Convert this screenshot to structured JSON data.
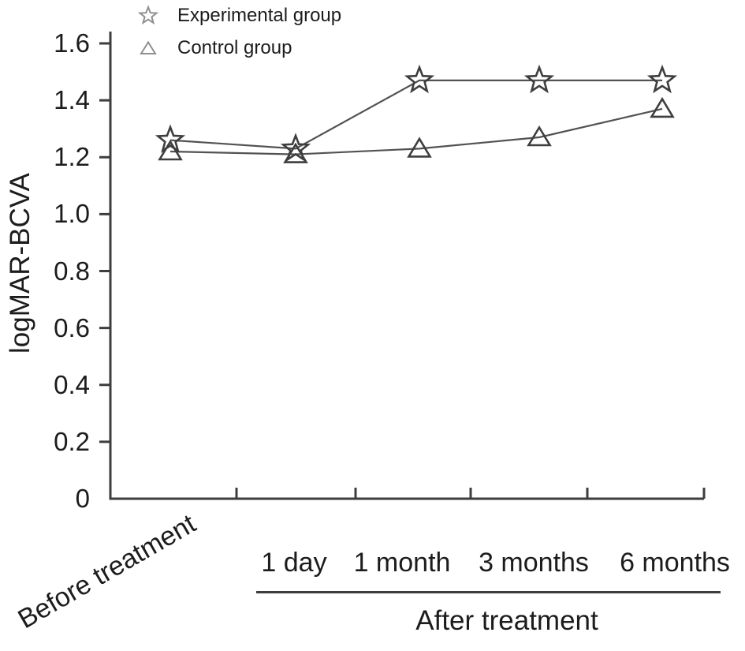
{
  "chart_data": {
    "type": "line",
    "title": "",
    "xlabel": "",
    "ylabel": "logMAR-BCVA",
    "categories": [
      "Before treatment",
      "1 day",
      "1 month",
      "3 months",
      "6 months"
    ],
    "x_group_label": "After treatment",
    "x_group_members": [
      "1 day",
      "1 month",
      "3 months",
      "6 months"
    ],
    "ylim": [
      0,
      1.6
    ],
    "yticks": [
      0,
      0.2,
      0.4,
      0.6,
      0.8,
      1.0,
      1.2,
      1.4,
      1.6
    ],
    "ytick_labels": [
      "0",
      "0.2",
      "0.4",
      "0.6",
      "0.8",
      "1.0",
      "1.2",
      "1.4",
      "1.6"
    ],
    "grid": false,
    "legend_position": "top-left",
    "series": [
      {
        "name": "Experimental group",
        "marker": "star",
        "values": [
          1.26,
          1.23,
          1.47,
          1.47,
          1.47
        ]
      },
      {
        "name": "Control group",
        "marker": "triangle",
        "values": [
          1.22,
          1.21,
          1.23,
          1.27,
          1.37
        ]
      }
    ],
    "colors": {
      "axis": "#3d3d3d",
      "series_line": "#525252",
      "marker_stroke": "#3e3e3e",
      "legend_marker": "#8f8f8f",
      "text": "#1c1c1c",
      "background": "#ffffff"
    }
  }
}
